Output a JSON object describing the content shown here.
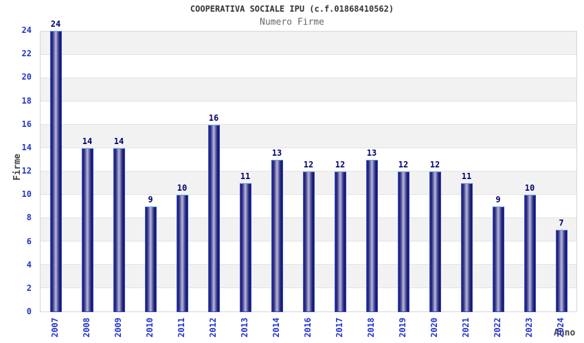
{
  "chart_data": {
    "type": "bar",
    "title": "COOPERATIVA SOCIALE IPU (c.f.01868410562)",
    "subtitle": "Numero Firme",
    "xlabel": "Anno",
    "ylabel": "Firme",
    "categories": [
      "2007",
      "2008",
      "2009",
      "2010",
      "2011",
      "2012",
      "2013",
      "2014",
      "2016",
      "2017",
      "2018",
      "2019",
      "2020",
      "2021",
      "2022",
      "2023",
      "2024"
    ],
    "values": [
      24,
      14,
      14,
      9,
      10,
      16,
      11,
      13,
      12,
      12,
      13,
      12,
      12,
      11,
      9,
      10,
      7
    ],
    "ylim": [
      0,
      24
    ],
    "ytick_step": 2,
    "yticks": [
      0,
      2,
      4,
      6,
      8,
      10,
      12,
      14,
      16,
      18,
      20,
      22,
      24
    ],
    "legend": "none",
    "grid": "horizontal gridlines every 2 units with alternating gray/white bands",
    "value_labels_shown": true,
    "colors": {
      "bar_dark": "#171768",
      "bar_light": "#b4b4d8",
      "bar_border": "#2f49d2",
      "tick_label": "#2233cc",
      "value_label": "#000070",
      "title": "#333333",
      "subtitle": "#666666",
      "axis_label": "#444444",
      "band_gray": "#f2f2f2",
      "gridline": "#e2e2e2",
      "plot_border": "#d6d6d6",
      "background": "#ffffff"
    }
  }
}
